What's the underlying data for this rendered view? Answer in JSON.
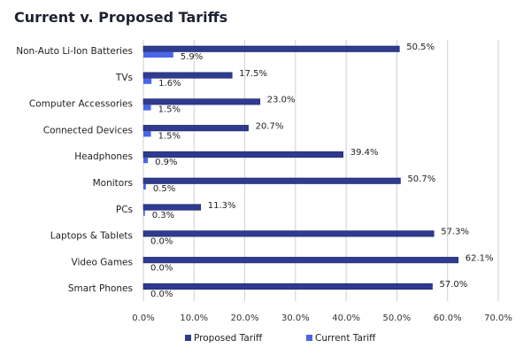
{
  "chart_data": {
    "type": "bar",
    "orientation": "horizontal",
    "title": "Current v. Proposed Tariffs",
    "categories": [
      "Non-Auto Li-Ion Batteries",
      "TVs",
      "Computer Accessories",
      "Connected Devices",
      "Headphones",
      "Monitors",
      "PCs",
      "Laptops & Tablets",
      "Video Games",
      "Smart Phones"
    ],
    "series": [
      {
        "name": "Proposed Tariff",
        "color": "#2f3b8f",
        "values": [
          50.5,
          17.5,
          23.0,
          20.7,
          39.4,
          50.7,
          11.3,
          57.3,
          62.1,
          57.0
        ]
      },
      {
        "name": "Current Tariff",
        "color": "#4a66e8",
        "values": [
          5.9,
          1.6,
          1.5,
          1.5,
          0.9,
          0.5,
          0.3,
          0.0,
          0.0,
          0.0
        ]
      }
    ],
    "xlim": [
      0,
      70
    ],
    "xticks": [
      "0.0%",
      "10.0%",
      "20.0%",
      "30.0%",
      "40.0%",
      "50.0%",
      "60.0%",
      "70.0%"
    ],
    "grid": true,
    "legend": "bottom"
  }
}
